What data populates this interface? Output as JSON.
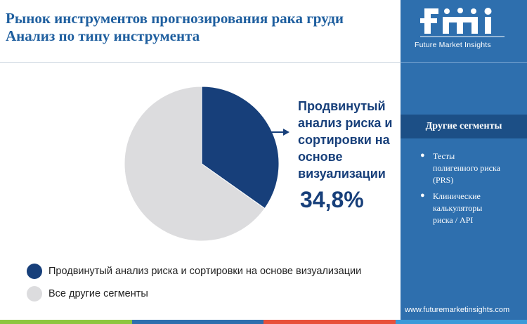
{
  "header": {
    "title_lines": [
      "Рынок инструментов прогнозирования рака груди",
      "Анализ по типу инструмента"
    ]
  },
  "chart_data": {
    "type": "pie",
    "categories": [
      "Продвинутый анализ риска и сортировки на основе визуализации",
      "Все другие сегменты"
    ],
    "values": [
      34.8,
      65.2
    ],
    "colors": [
      "#173f7a",
      "#dcdcde"
    ],
    "highlight": {
      "label_lines": [
        "Продвинутый",
        "анализ риска и",
        "сортировки на",
        "основе",
        "визуализации"
      ],
      "value_text": "34,8%"
    },
    "legend_placement": "bottom-left"
  },
  "legend": {
    "items": [
      {
        "label": "Продвинутый анализ риска и сортировки на основе визуализации",
        "color": "#173f7a"
      },
      {
        "label": "Все другие сегменты",
        "color": "#dcdcde"
      }
    ]
  },
  "side_panel": {
    "logo_text": "Future Market Insights",
    "logo_icon": "fmi-logo-icon",
    "segments_header": "Другие сегменты",
    "segments": [
      {
        "lines": [
          "Тесты",
          "полигенного риска",
          "(PRS)"
        ]
      },
      {
        "lines": [
          "Клинические",
          "калькуляторы",
          "риска / API"
        ]
      }
    ],
    "website": "www.futuremarketinsights.com",
    "panel_color": "#2e6fae",
    "header_color": "#1c4f86"
  },
  "bottom_strip": {
    "colors": [
      "#8dc63f",
      "#2e6fae",
      "#e8503a",
      "#3a9ad9"
    ]
  }
}
